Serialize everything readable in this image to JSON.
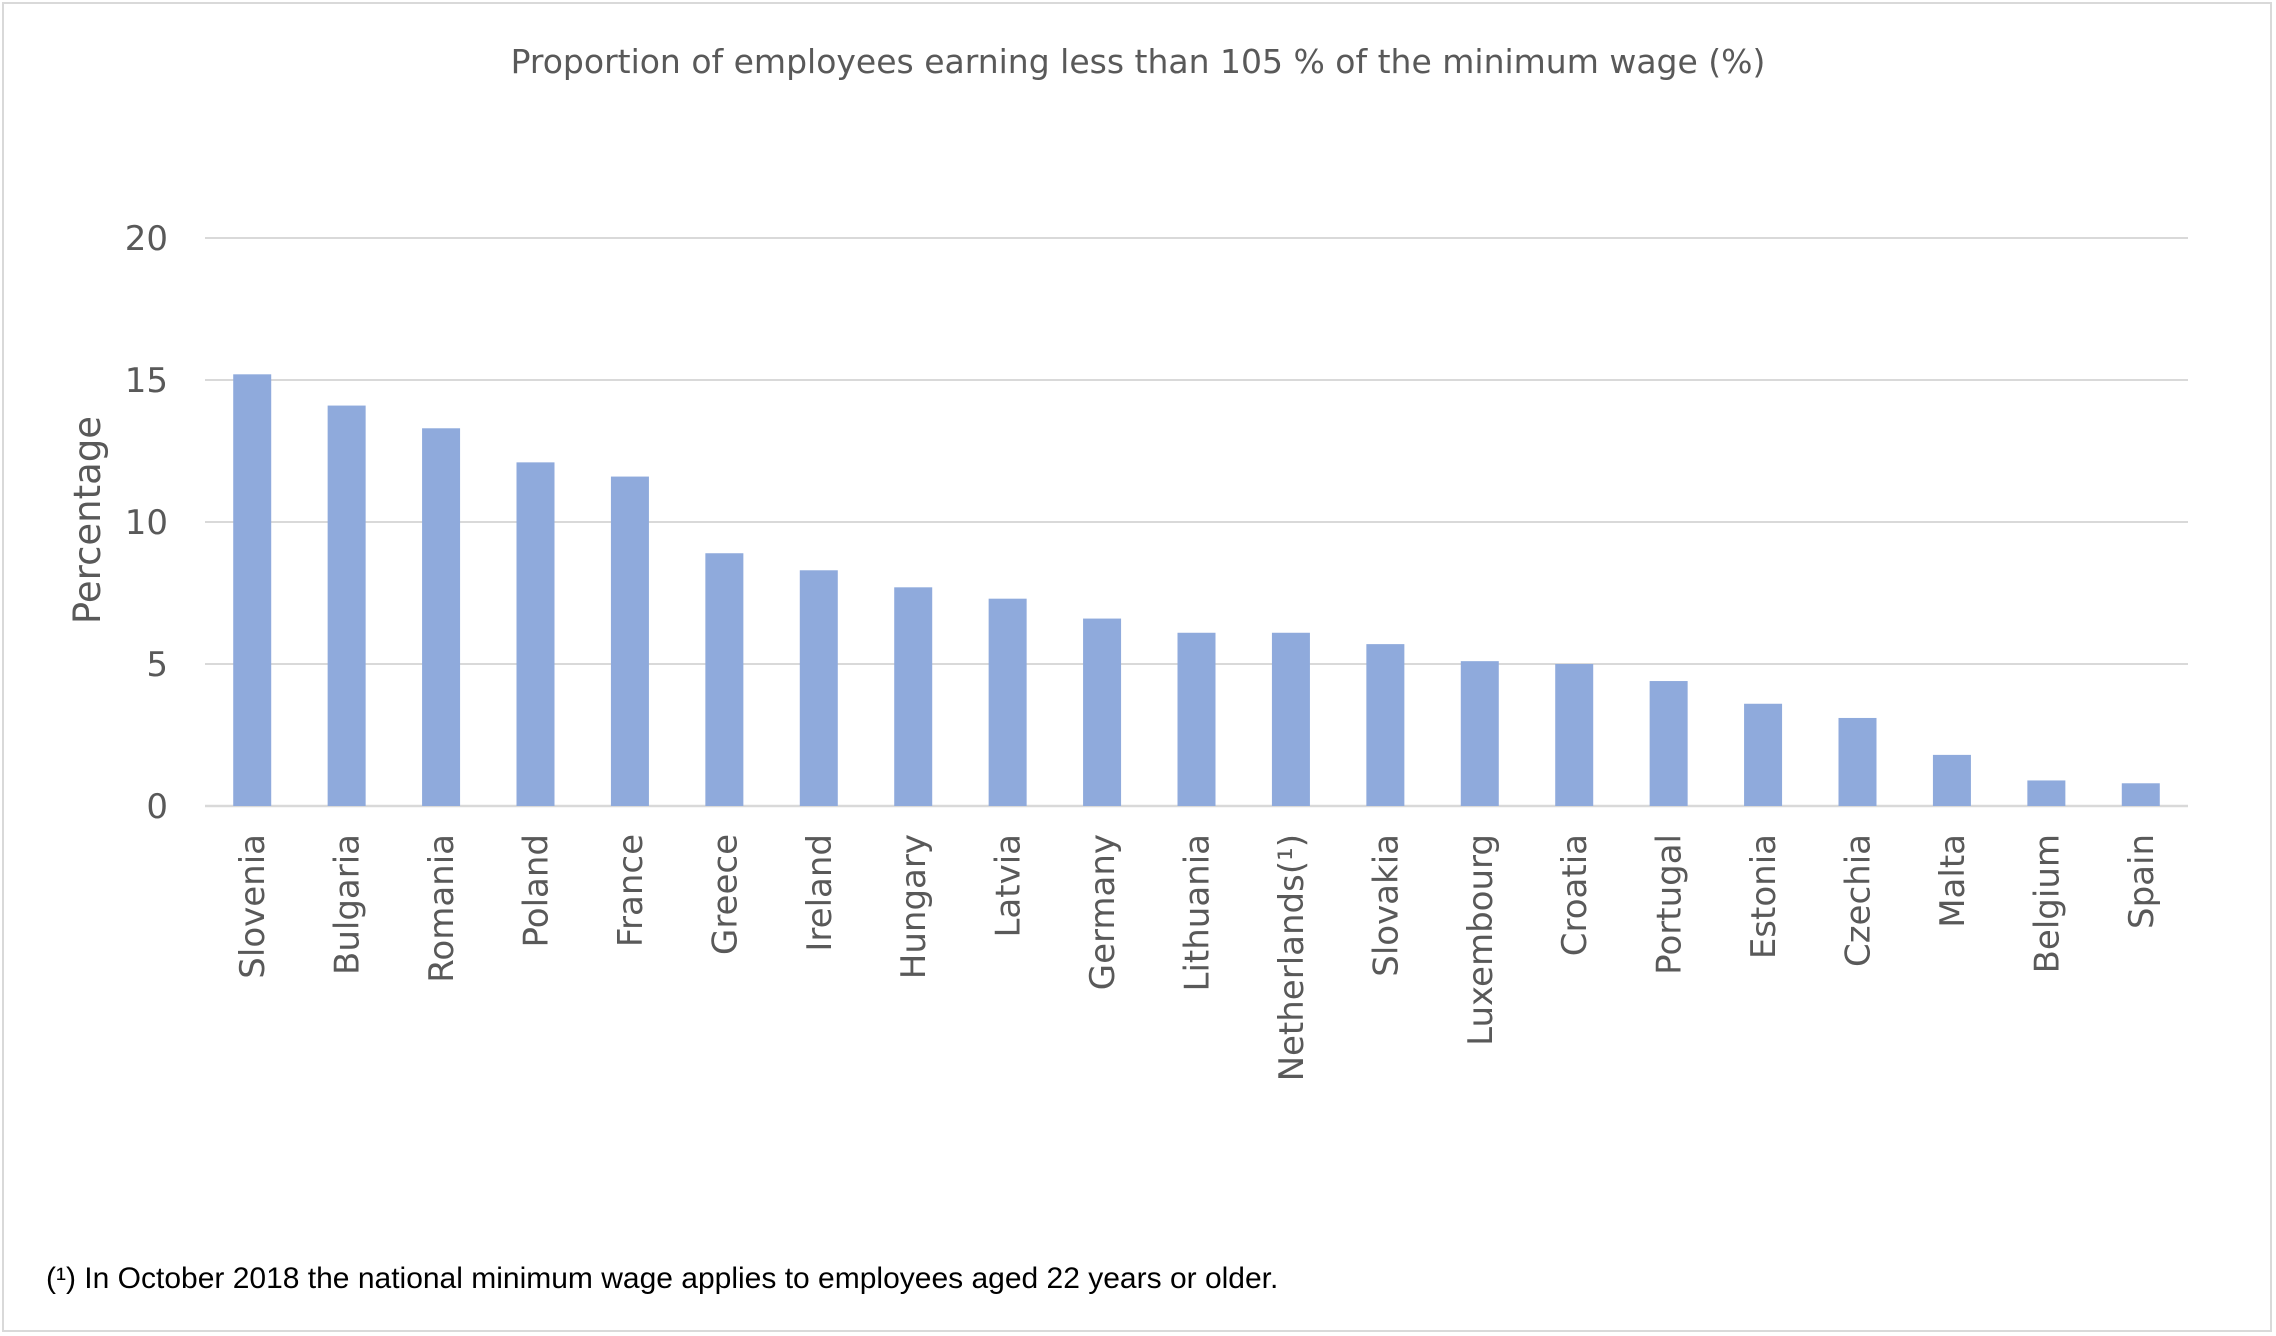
{
  "chart_data": {
    "type": "bar",
    "title": "Proportion of employees earning less than 105 % of the minimum wage (%)",
    "xlabel": "",
    "ylabel": "Percentage",
    "ylim": [
      0,
      20
    ],
    "yticks": [
      0,
      5,
      10,
      15,
      20
    ],
    "grid": true,
    "categories": [
      "Slovenia",
      "Bulgaria",
      "Romania",
      "Poland",
      "France",
      "Greece",
      "Ireland",
      "Hungary",
      "Latvia",
      "Germany",
      "Lithuania",
      "Netherlands(¹)",
      "Slovakia",
      "Luxembourg",
      "Croatia",
      "Portugal",
      "Estonia",
      "Czechia",
      "Malta",
      "Belgium",
      "Spain"
    ],
    "values": [
      15.2,
      14.1,
      13.3,
      12.1,
      11.6,
      8.9,
      8.3,
      7.7,
      7.3,
      6.6,
      6.1,
      6.1,
      5.7,
      5.1,
      5.0,
      4.4,
      3.6,
      3.1,
      1.8,
      0.9,
      0.8
    ],
    "bar_color": "#8faadc",
    "grid_color": "#d9d9d9"
  },
  "footnote": "(¹) In October 2018 the national minimum wage applies to employees aged 22 years or older."
}
